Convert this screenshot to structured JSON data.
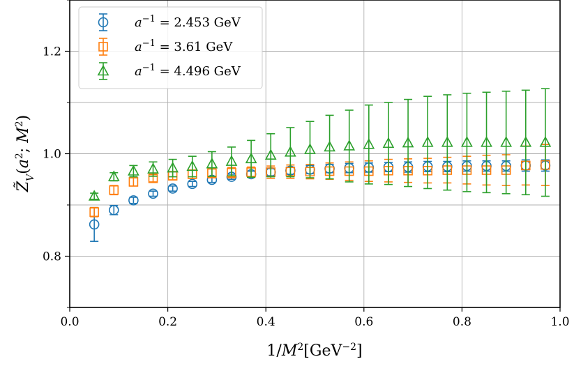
{
  "chart_data": {
    "type": "scatter",
    "title": "",
    "xlabel": "1/M²[GeV⁻²]",
    "ylabel": "Z̃V(a²; M²)",
    "xlim": [
      0.0,
      1.0
    ],
    "ylim": [
      0.7,
      1.3
    ],
    "xticks": [
      0.0,
      0.2,
      0.4,
      0.6,
      0.8,
      1.0
    ],
    "xtick_labels": [
      "0.0",
      "0.2",
      "0.4",
      "0.6",
      "0.8",
      "1.0"
    ],
    "yticks": [
      0.8,
      1.0,
      1.2
    ],
    "ytick_labels": [
      "0.8",
      "1.0",
      "1.2"
    ],
    "y_grid_minor": [
      0.7,
      0.9,
      1.1,
      1.3
    ],
    "grid": true,
    "legend_position": "top-left",
    "x": [
      0.05,
      0.09,
      0.13,
      0.17,
      0.21,
      0.25,
      0.29,
      0.33,
      0.37,
      0.41,
      0.45,
      0.49,
      0.53,
      0.57,
      0.61,
      0.65,
      0.69,
      0.73,
      0.77,
      0.81,
      0.85,
      0.89,
      0.93,
      0.97
    ],
    "series": [
      {
        "name": "a⁻¹ = 2.453 GeV",
        "marker": "circle",
        "color": "#1f77b4",
        "y": [
          0.862,
          0.89,
          0.909,
          0.922,
          0.932,
          0.941,
          0.949,
          0.955,
          0.96,
          0.964,
          0.967,
          0.969,
          0.971,
          0.972,
          0.973,
          0.974,
          0.974,
          0.975,
          0.975,
          0.976,
          0.976,
          0.976,
          0.977,
          0.977
        ],
        "err": [
          0.033,
          0.009,
          0.006,
          0.005,
          0.005,
          0.005,
          0.005,
          0.005,
          0.006,
          0.007,
          0.007,
          0.008,
          0.008,
          0.009,
          0.009,
          0.009,
          0.01,
          0.01,
          0.01,
          0.01,
          0.01,
          0.01,
          0.011,
          0.011
        ]
      },
      {
        "name": "a⁻¹ = 3.61 GeV",
        "marker": "square",
        "color": "#ff7f0e",
        "y": [
          0.886,
          0.929,
          0.945,
          0.952,
          0.957,
          0.96,
          0.962,
          0.963,
          0.964,
          0.964,
          0.965,
          0.965,
          0.966,
          0.966,
          0.966,
          0.967,
          0.967,
          0.967,
          0.968,
          0.968,
          0.968,
          0.968,
          0.977,
          0.978
        ],
        "err": [
          0.009,
          0.009,
          0.008,
          0.007,
          0.008,
          0.008,
          0.009,
          0.01,
          0.01,
          0.012,
          0.013,
          0.014,
          0.016,
          0.018,
          0.02,
          0.022,
          0.023,
          0.024,
          0.025,
          0.027,
          0.029,
          0.03,
          0.038,
          0.04
        ]
      },
      {
        "name": "a⁻¹ = 4.496 GeV",
        "marker": "triangle",
        "color": "#2ca02c",
        "y": [
          0.917,
          0.955,
          0.966,
          0.97,
          0.972,
          0.975,
          0.98,
          0.985,
          0.99,
          0.997,
          1.003,
          1.008,
          1.013,
          1.015,
          1.018,
          1.02,
          1.021,
          1.022,
          1.022,
          1.022,
          1.022,
          1.022,
          1.022,
          1.022
        ],
        "err": [
          0.006,
          0.008,
          0.011,
          0.014,
          0.017,
          0.02,
          0.024,
          0.028,
          0.036,
          0.042,
          0.048,
          0.055,
          0.062,
          0.07,
          0.077,
          0.08,
          0.085,
          0.09,
          0.093,
          0.096,
          0.098,
          0.1,
          0.102,
          0.105
        ]
      }
    ]
  }
}
